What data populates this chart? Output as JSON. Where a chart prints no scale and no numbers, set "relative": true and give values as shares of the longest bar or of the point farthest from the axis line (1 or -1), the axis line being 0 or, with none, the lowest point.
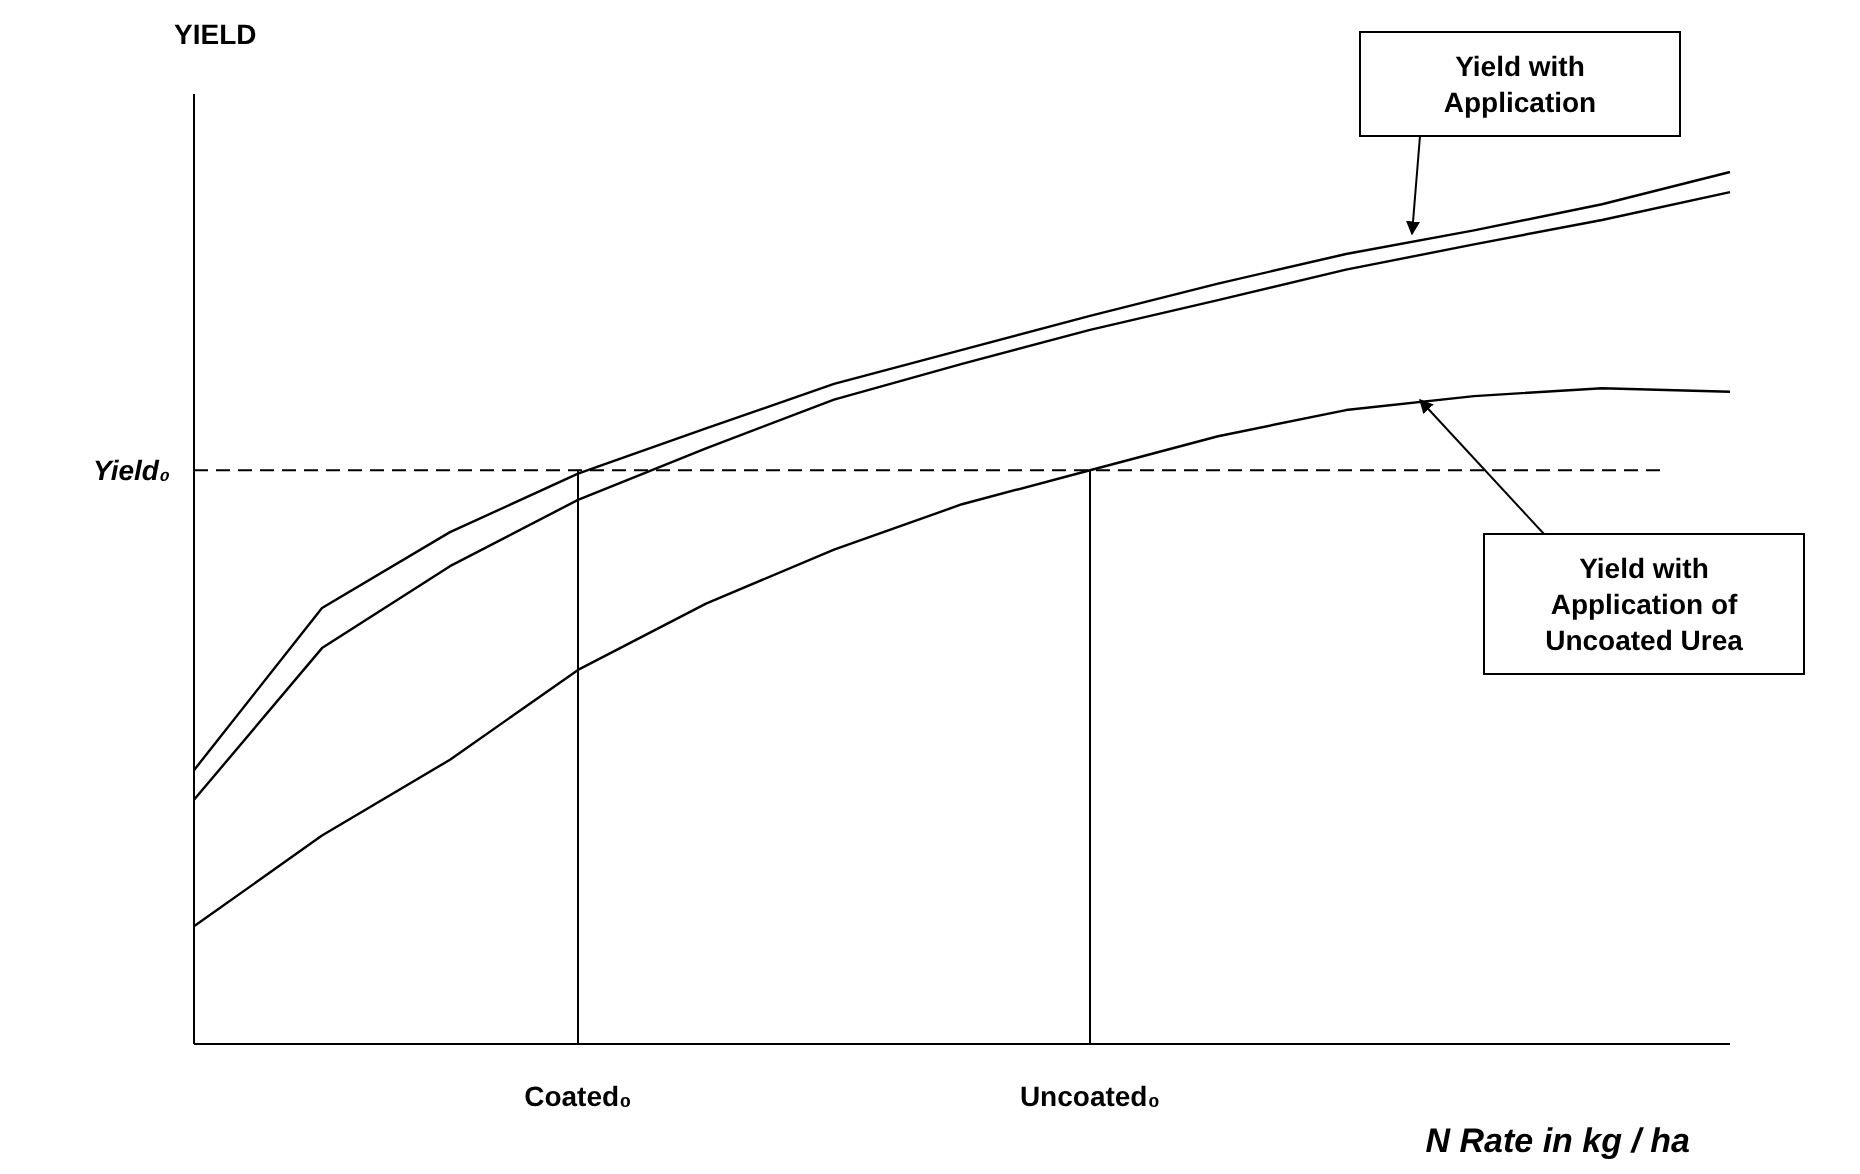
{
  "chart_data": {
    "type": "line",
    "ylabel": "YIELD",
    "xlabel": "N Rate in  kg / ha",
    "relative": true,
    "categories": [
      null,
      null,
      null,
      "Coated₀",
      null,
      null,
      null,
      "Uncoated₀",
      null,
      null,
      null,
      null,
      null
    ],
    "series": [
      {
        "color": "#000000",
        "values": [
          0.314,
          0.5,
          0.587,
          0.654,
          0.706,
          0.757,
          0.796,
          0.835,
          0.872,
          0.906,
          0.933,
          0.963,
          1
        ]
      },
      {
        "color": "#000000",
        "values": [
          0.28,
          0.454,
          0.548,
          0.624,
          0.683,
          0.739,
          0.78,
          0.819,
          0.853,
          0.888,
          0.917,
          0.945,
          0.977
        ]
      },
      {
        "color": "#000000",
        "values": [
          0.135,
          0.239,
          0.326,
          0.429,
          0.505,
          0.567,
          0.619,
          0.658,
          0.697,
          0.727,
          0.743,
          0.752,
          0.748
        ]
      }
    ],
    "ref_lines": [
      {
        "axis": "y",
        "value": 0.658,
        "label": "Yield₀",
        "line_style": "dashed",
        "color": "#000000"
      },
      {
        "axis": "x",
        "value": "Coated₀",
        "line_style": "solid",
        "color": "#000000"
      },
      {
        "axis": "x",
        "value": "Uncoated₀",
        "line_style": "solid",
        "color": "#000000"
      }
    ],
    "annotations": [
      "Yield with Application",
      "Yield with Application of Uncoated Urea"
    ]
  }
}
